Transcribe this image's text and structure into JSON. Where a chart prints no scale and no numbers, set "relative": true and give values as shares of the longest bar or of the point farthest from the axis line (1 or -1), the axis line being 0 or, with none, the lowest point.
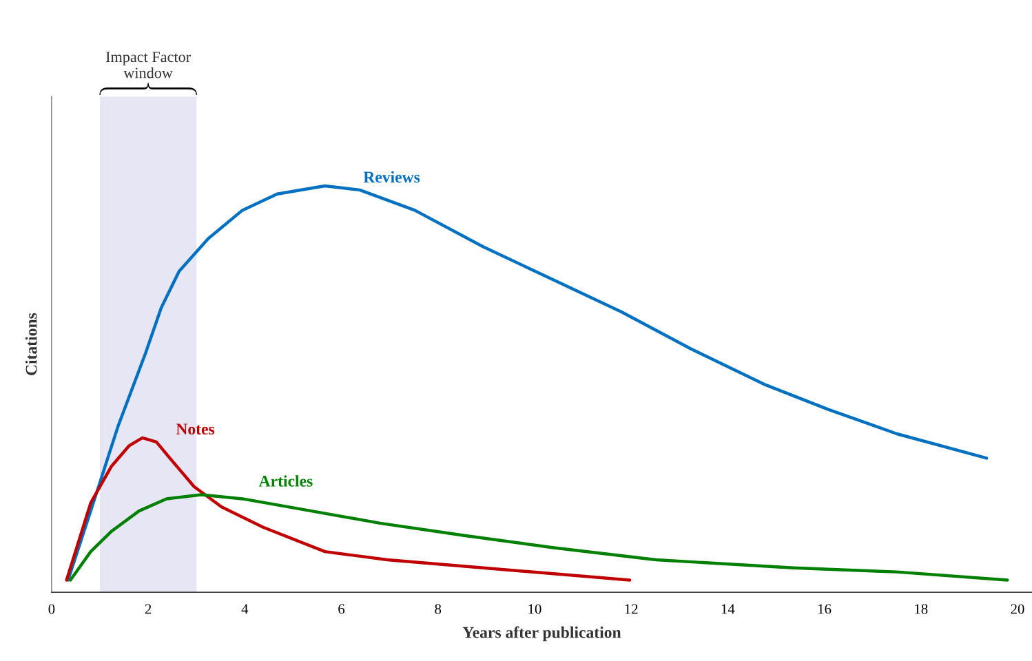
{
  "chart_data": {
    "type": "line",
    "relative": true,
    "xlabel": "Years after publication",
    "ylabel": "Citations",
    "xlim": [
      0,
      20.3
    ],
    "xticks": [
      0,
      2,
      4,
      6,
      8,
      10,
      12,
      14,
      16,
      18,
      20
    ],
    "tick_labels": "x",
    "grid": false,
    "legend": false,
    "marker": "none",
    "line_style": "solid",
    "bands": [
      {
        "axis": "x",
        "from": 1,
        "to": 3,
        "label": "Impact Factor\nwindow",
        "color": "#e6e6f4"
      }
    ],
    "series": [
      {
        "name": "Reviews",
        "color": "#0070c0",
        "x": [
          0.34,
          0.81,
          1.38,
          1.95,
          2.27,
          2.64,
          3.24,
          3.95,
          4.67,
          5.66,
          6.38,
          7.52,
          8.94,
          10.37,
          11.8,
          13.22,
          14.79,
          16.08,
          17.5,
          19.36
        ],
        "values": [
          0.03,
          0.2,
          0.41,
          0.59,
          0.7,
          0.79,
          0.87,
          0.94,
          0.98,
          1.0,
          0.99,
          0.94,
          0.85,
          0.77,
          0.69,
          0.6,
          0.51,
          0.45,
          0.39,
          0.33
        ]
      },
      {
        "name": "Notes",
        "color": "#c00000",
        "x": [
          0.31,
          0.81,
          1.24,
          1.6,
          1.88,
          2.17,
          2.52,
          2.95,
          3.52,
          4.38,
          5.66,
          6.95,
          8.94,
          11.97
        ],
        "values": [
          0.03,
          0.22,
          0.31,
          0.36,
          0.38,
          0.37,
          0.32,
          0.26,
          0.21,
          0.16,
          0.1,
          0.08,
          0.06,
          0.03
        ]
      },
      {
        "name": "Articles",
        "color": "#008000",
        "x": [
          0.39,
          0.81,
          1.24,
          1.81,
          2.38,
          3.1,
          3.95,
          5.38,
          6.8,
          8.52,
          10.37,
          12.51,
          15.36,
          17.5,
          19.79
        ],
        "values": [
          0.03,
          0.1,
          0.15,
          0.2,
          0.23,
          0.24,
          0.23,
          0.2,
          0.17,
          0.14,
          0.11,
          0.08,
          0.06,
          0.05,
          0.03
        ]
      }
    ]
  }
}
